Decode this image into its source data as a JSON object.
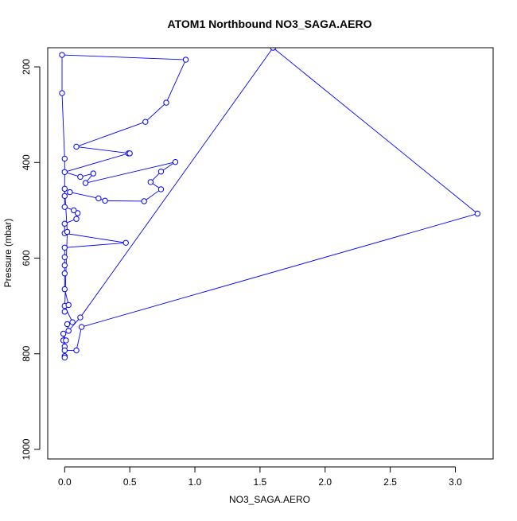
{
  "chart_data": {
    "type": "scatter",
    "title": "ATOM1 Northbound NO3_SAGA.AERO",
    "xlabel": "NO3_SAGA.AERO",
    "ylabel": "Pressure (mbar)",
    "xlim": [
      -0.13,
      3.29
    ],
    "ylim": [
      1020,
      160
    ],
    "y_reversed": true,
    "x_ticks": [
      0.0,
      0.5,
      1.0,
      1.5,
      2.0,
      2.5,
      3.0
    ],
    "x_tick_labels": [
      "0.0",
      "0.5",
      "1.0",
      "1.5",
      "2.0",
      "2.5",
      "3.0"
    ],
    "y_ticks": [
      200,
      400,
      600,
      800,
      1000
    ],
    "y_tick_labels": [
      "200",
      "400",
      "600",
      "800",
      "1000"
    ],
    "grid": false,
    "legend": "none",
    "series_color": "#0000ff",
    "series": [
      {
        "values": [
          {
            "x": 0.0,
            "y": 805
          },
          {
            "x": 0.0,
            "y": 808
          },
          {
            "x": 0.0,
            "y": 785
          },
          {
            "x": -0.01,
            "y": 772
          },
          {
            "x": 0.01,
            "y": 772
          },
          {
            "x": -0.01,
            "y": 758
          },
          {
            "x": 0.0,
            "y": 793
          },
          {
            "x": 0.09,
            "y": 793
          },
          {
            "x": 0.13,
            "y": 744
          },
          {
            "x": 3.17,
            "y": 507
          },
          {
            "x": 1.6,
            "y": 160
          },
          {
            "x": 0.12,
            "y": 724
          },
          {
            "x": 0.03,
            "y": 752
          },
          {
            "x": 0.02,
            "y": 738
          },
          {
            "x": 0.06,
            "y": 734
          },
          {
            "x": 0.0,
            "y": 700
          },
          {
            "x": 0.03,
            "y": 698
          },
          {
            "x": 0.0,
            "y": 665
          },
          {
            "x": 0.0,
            "y": 632
          },
          {
            "x": 0.0,
            "y": 615
          },
          {
            "x": 0.0,
            "y": 598
          },
          {
            "x": 0.0,
            "y": 578
          },
          {
            "x": 0.47,
            "y": 568
          },
          {
            "x": 0.0,
            "y": 548
          },
          {
            "x": 0.0,
            "y": 528
          },
          {
            "x": 0.09,
            "y": 518
          },
          {
            "x": 0.1,
            "y": 506
          },
          {
            "x": 0.07,
            "y": 500
          },
          {
            "x": 0.0,
            "y": 493
          },
          {
            "x": 0.0,
            "y": 470
          },
          {
            "x": 0.04,
            "y": 462
          },
          {
            "x": 0.26,
            "y": 475
          },
          {
            "x": 0.31,
            "y": 480
          },
          {
            "x": 0.61,
            "y": 481
          },
          {
            "x": 0.74,
            "y": 456
          },
          {
            "x": 0.66,
            "y": 441
          },
          {
            "x": 0.74,
            "y": 419
          },
          {
            "x": 0.85,
            "y": 399
          },
          {
            "x": 0.16,
            "y": 443
          },
          {
            "x": 0.22,
            "y": 423
          },
          {
            "x": 0.12,
            "y": 430
          },
          {
            "x": 0.0,
            "y": 420
          },
          {
            "x": 0.49,
            "y": 381
          },
          {
            "x": 0.5,
            "y": 381
          },
          {
            "x": 0.09,
            "y": 367
          },
          {
            "x": 0.62,
            "y": 315
          },
          {
            "x": 0.78,
            "y": 275
          },
          {
            "x": 0.93,
            "y": 185
          },
          {
            "x": -0.02,
            "y": 175
          },
          {
            "x": -0.02,
            "y": 255
          },
          {
            "x": 0.0,
            "y": 392
          },
          {
            "x": 0.0,
            "y": 455
          },
          {
            "x": 0.02,
            "y": 545
          },
          {
            "x": 0.0,
            "y": 712
          }
        ]
      }
    ]
  }
}
